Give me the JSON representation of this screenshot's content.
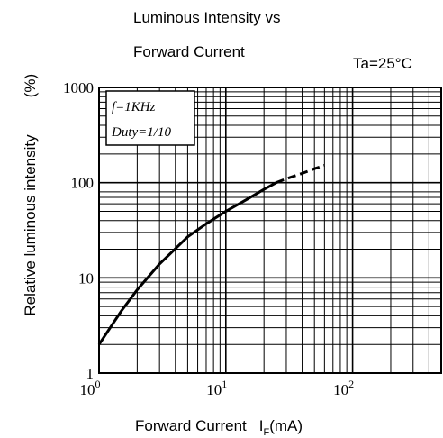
{
  "chart_data": {
    "type": "line",
    "title_line1": "Luminous Intensity vs",
    "title_line2": "Forward Current",
    "condition": "Ta=25°C",
    "xlabel_main": "Forward Current",
    "xlabel_symbol": "I",
    "xlabel_sub": "F",
    "xlabel_unit": "(mA)",
    "ylabel": "Relative luminous intensity",
    "ylabel_unit": "(%)",
    "x_scale": "log",
    "y_scale": "log",
    "xlim": [
      1,
      500
    ],
    "ylim": [
      1,
      1000
    ],
    "x_ticks": [
      {
        "value": 1,
        "base": "10",
        "exp": "0"
      },
      {
        "value": 10,
        "base": "10",
        "exp": "1"
      },
      {
        "value": 100,
        "base": "10",
        "exp": "2"
      }
    ],
    "y_ticks": [
      {
        "value": 1,
        "label": "1"
      },
      {
        "value": 10,
        "label": "10"
      },
      {
        "value": 100,
        "label": "100"
      },
      {
        "value": 1000,
        "label": "1000"
      }
    ],
    "grid": true,
    "annotation": [
      "f=1KHz",
      "Duty=1/10"
    ],
    "series": [
      {
        "style": "solid",
        "x": [
          1,
          1.5,
          2,
          3,
          5,
          7,
          10,
          15,
          20,
          25
        ],
        "y": [
          2,
          4.5,
          7.5,
          14,
          27,
          37,
          50,
          68,
          85,
          100
        ]
      },
      {
        "style": "dashed",
        "x": [
          25,
          30,
          40,
          50,
          60
        ],
        "y": [
          100,
          110,
          125,
          140,
          152
        ]
      }
    ]
  }
}
